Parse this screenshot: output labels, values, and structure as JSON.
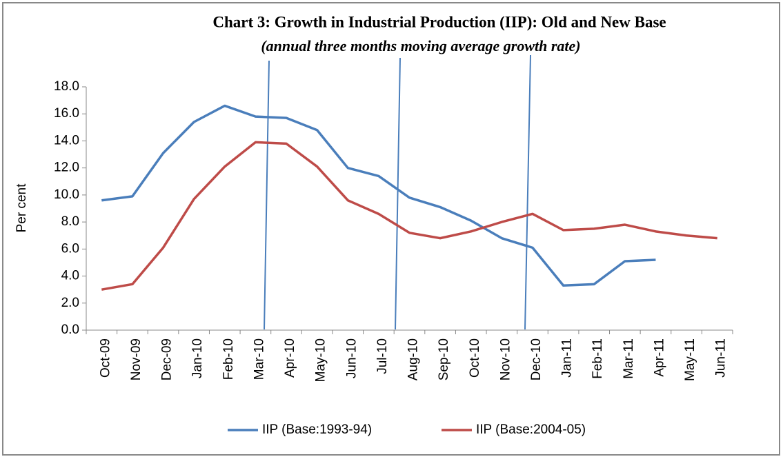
{
  "chart_data": {
    "type": "line",
    "title": "Chart 3: Growth in Industrial Production (IIP): Old and New Base",
    "subtitle": "(annual three months moving average growth rate)",
    "ylabel": "Per cent",
    "categories": [
      "Oct-09",
      "Nov-09",
      "Dec-09",
      "Jan-10",
      "Feb-10",
      "Mar-10",
      "Apr-10",
      "May-10",
      "Jun-10",
      "Jul-10",
      "Aug-10",
      "Sep-10",
      "Oct-10",
      "Nov-10",
      "Dec-10",
      "Jan-11",
      "Feb-11",
      "Mar-11",
      "Apr-11",
      "May-11",
      "Jun-11"
    ],
    "series": [
      {
        "name": "IIP (Base:1993-94)",
        "color": "#4a7ebb",
        "values": [
          9.6,
          9.9,
          13.1,
          15.4,
          16.6,
          15.8,
          15.7,
          14.8,
          12.0,
          11.4,
          9.8,
          9.1,
          8.1,
          6.8,
          6.1,
          3.3,
          3.4,
          5.1,
          5.2,
          null,
          null
        ]
      },
      {
        "name": "IIP (Base:2004-05)",
        "color": "#be4b48",
        "values": [
          3.0,
          3.4,
          6.1,
          9.7,
          12.1,
          13.9,
          13.8,
          12.1,
          9.6,
          8.6,
          7.2,
          6.8,
          7.3,
          8.0,
          8.6,
          7.4,
          7.5,
          7.8,
          7.3,
          7.0,
          6.8
        ]
      }
    ],
    "ylim": [
      0,
      18
    ],
    "yticks": [
      {
        "value": 0,
        "label": "0.0"
      },
      {
        "value": 2,
        "label": "2.0"
      },
      {
        "value": 4,
        "label": "4.0"
      },
      {
        "value": 6,
        "label": "6.0"
      },
      {
        "value": 8,
        "label": "8.0"
      },
      {
        "value": 10,
        "label": "10.0"
      },
      {
        "value": 12,
        "label": "12.0"
      },
      {
        "value": 14,
        "label": "14.0"
      },
      {
        "value": 16,
        "label": "16.0"
      },
      {
        "value": 18,
        "label": "18.0"
      }
    ]
  }
}
